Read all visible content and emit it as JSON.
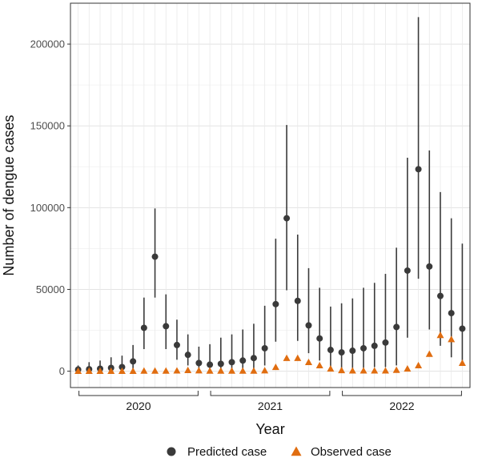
{
  "chart_data": {
    "type": "scatter",
    "xlabel": "Year",
    "ylabel": "Number of dengue cases",
    "ylim": [
      -10000,
      225000
    ],
    "yticks": [
      0,
      50000,
      100000,
      150000,
      200000
    ],
    "ytick_labels": [
      "0",
      "50000",
      "100000",
      "150000",
      "200000"
    ],
    "grid": true,
    "legend_position": "bottom",
    "groups": [
      {
        "label": "2020",
        "months": [
          1,
          12
        ]
      },
      {
        "label": "2021",
        "months": [
          13,
          24
        ]
      },
      {
        "label": "2022",
        "months": [
          25,
          36
        ]
      }
    ],
    "series": [
      {
        "name": "Predicted case",
        "marker": "circle",
        "color": "#3a3a3a",
        "x": [
          1,
          2,
          3,
          4,
          5,
          6,
          7,
          8,
          9,
          10,
          11,
          12,
          13,
          14,
          15,
          16,
          17,
          18,
          19,
          20,
          21,
          22,
          23,
          24,
          25,
          26,
          27,
          28,
          29,
          30,
          31,
          32,
          33,
          34,
          35,
          36
        ],
        "values": [
          1000,
          1200,
          1500,
          2000,
          2500,
          6000,
          26500,
          70000,
          27500,
          16000,
          10000,
          5000,
          4000,
          4500,
          5500,
          6500,
          8000,
          14000,
          41000,
          93500,
          43000,
          28000,
          20000,
          13000,
          11500,
          12500,
          14000,
          15500,
          17500,
          27000,
          61500,
          123500,
          64000,
          46000,
          35500,
          26000
        ],
        "lower": [
          0,
          0,
          0,
          0,
          0,
          500,
          13500,
          45000,
          13500,
          7000,
          3500,
          1000,
          500,
          500,
          500,
          1000,
          1500,
          3500,
          18000,
          49500,
          18500,
          11000,
          6500,
          3000,
          1500,
          1500,
          2000,
          2500,
          2500,
          3500,
          20500,
          56500,
          25500,
          15500,
          8500,
          5000
        ],
        "upper": [
          3500,
          5500,
          6500,
          8500,
          9500,
          16000,
          45000,
          99500,
          47000,
          31500,
          22500,
          15000,
          16500,
          20500,
          22500,
          25500,
          29000,
          40000,
          81000,
          150500,
          83500,
          63000,
          51000,
          39500,
          41500,
          44500,
          51000,
          54000,
          59500,
          75500,
          130500,
          216500,
          135000,
          109500,
          93500,
          78000
        ]
      },
      {
        "name": "Observed case",
        "marker": "triangle",
        "color": "#e06d10",
        "x": [
          1,
          2,
          3,
          4,
          5,
          6,
          7,
          8,
          9,
          10,
          11,
          12,
          13,
          14,
          15,
          16,
          17,
          18,
          19,
          20,
          21,
          22,
          23,
          24,
          25,
          26,
          27,
          28,
          29,
          30,
          31,
          32,
          33,
          34,
          35,
          36
        ],
        "values": [
          100,
          100,
          100,
          100,
          100,
          100,
          200,
          200,
          200,
          300,
          600,
          400,
          200,
          200,
          200,
          200,
          200,
          400,
          2500,
          8000,
          8000,
          5500,
          3500,
          1500,
          500,
          300,
          300,
          300,
          300,
          700,
          1500,
          3500,
          10500,
          22000,
          19500,
          5000
        ]
      }
    ]
  }
}
